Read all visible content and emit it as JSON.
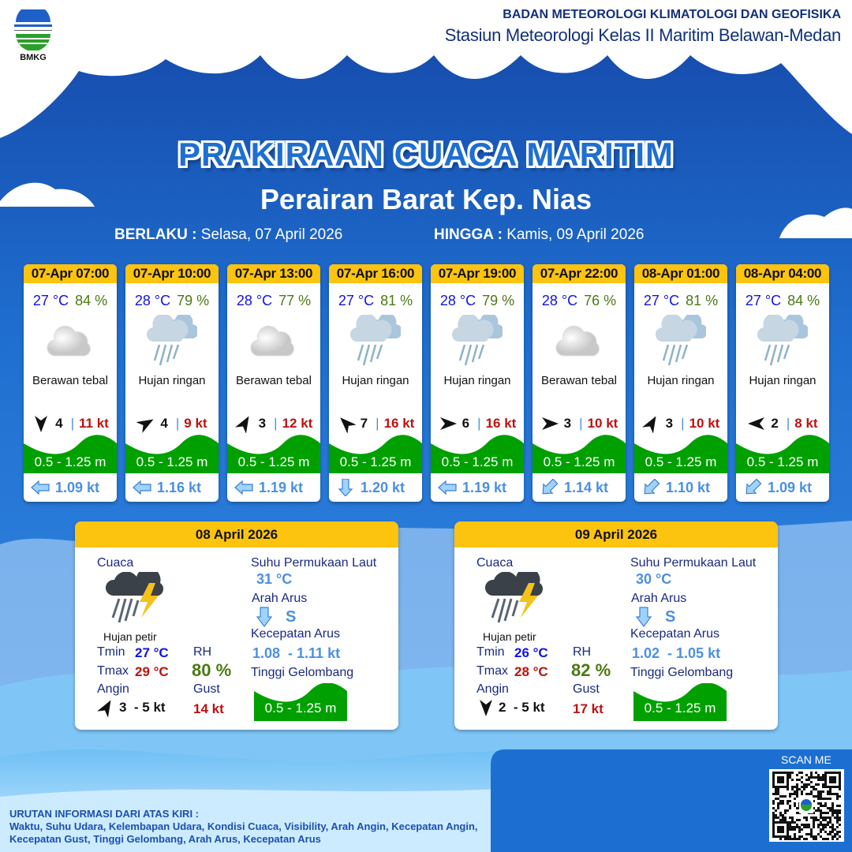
{
  "header": {
    "agency": "BADAN METEOROLOGI KLIMATOLOGI DAN GEOFISIKA",
    "station": "Stasiun Meteorologi Kelas II Maritim Belawan-Medan",
    "logo_text": "BMKG"
  },
  "title": "PRAKIRAAN CUACA MARITIM",
  "subtitle": "Perairan Barat Kep. Nias",
  "validity": {
    "from_label": "BERLAKU :",
    "from": "Selasa, 07 April 2026",
    "to_label": "HINGGA :",
    "to": "Kamis, 09 April 2026"
  },
  "colors": {
    "header_yellow": "#fcc30f",
    "temp": "#1212e6",
    "rh": "#4a7a12",
    "gust": "#c01010",
    "wave": "#00a000",
    "current": "#4a90e2"
  },
  "forecasts": [
    {
      "time": "07-Apr 07:00",
      "temp": "27 °C",
      "rh": "84 %",
      "icon": "cloudy-icon",
      "cond": "Berawan tebal",
      "wind_dir": 180,
      "wind": "4",
      "gust": "11 kt",
      "wave": "0.5 - 1.25 m",
      "cur_dir": "left",
      "cur": "1.09 kt"
    },
    {
      "time": "07-Apr 10:00",
      "temp": "28 °C",
      "rh": "79 %",
      "icon": "rain-icon",
      "cond": "Hujan ringan",
      "wind_dir": 60,
      "wind": "4",
      "gust": "9 kt",
      "wave": "0.5 - 1.25 m",
      "cur_dir": "left",
      "cur": "1.16 kt"
    },
    {
      "time": "07-Apr 13:00",
      "temp": "28 °C",
      "rh": "77 %",
      "icon": "cloudy-icon",
      "cond": "Berawan tebal",
      "wind_dir": 30,
      "wind": "3",
      "gust": "12 kt",
      "wave": "0.5 - 1.25 m",
      "cur_dir": "left",
      "cur": "1.19 kt"
    },
    {
      "time": "07-Apr 16:00",
      "temp": "27 °C",
      "rh": "81 %",
      "icon": "rain-icon",
      "cond": "Hujan ringan",
      "wind_dir": 315,
      "wind": "7",
      "gust": "16 kt",
      "wave": "0.5 - 1.25 m",
      "cur_dir": "down",
      "cur": "1.20 kt"
    },
    {
      "time": "07-Apr 19:00",
      "temp": "28 °C",
      "rh": "79 %",
      "icon": "rain-icon",
      "cond": "Hujan ringan",
      "wind_dir": 90,
      "wind": "6",
      "gust": "16 kt",
      "wave": "0.5 - 1.25 m",
      "cur_dir": "left",
      "cur": "1.19 kt"
    },
    {
      "time": "07-Apr 22:00",
      "temp": "28 °C",
      "rh": "76 %",
      "icon": "cloudy-icon",
      "cond": "Berawan tebal",
      "wind_dir": 90,
      "wind": "3",
      "gust": "10 kt",
      "wave": "0.5 - 1.25 m",
      "cur_dir": "down-left",
      "cur": "1.14 kt"
    },
    {
      "time": "08-Apr 01:00",
      "temp": "27 °C",
      "rh": "81 %",
      "icon": "rain-icon",
      "cond": "Hujan ringan",
      "wind_dir": 30,
      "wind": "3",
      "gust": "10 kt",
      "wave": "0.5 - 1.25 m",
      "cur_dir": "down-left",
      "cur": "1.10 kt"
    },
    {
      "time": "08-Apr 04:00",
      "temp": "27 °C",
      "rh": "84 %",
      "icon": "rain-icon",
      "cond": "Hujan ringan",
      "wind_dir": 270,
      "wind": "2",
      "gust": "8 kt",
      "wave": "0.5 - 1.25 m",
      "cur_dir": "down-left",
      "cur": "1.09 kt"
    }
  ],
  "labels": {
    "weather": "Cuaca",
    "sst": "Suhu Permukaan Laut",
    "cur_dir": "Arah Arus",
    "cur_speed": "Kecepatan Arus",
    "wave": "Tinggi Gelombang",
    "tmin": "Tmin",
    "tmax": "Tmax",
    "rh": "RH",
    "wind": "Angin",
    "gust": "Gust"
  },
  "days": [
    {
      "date": "08 April 2026",
      "cond": "Hujan petir",
      "tmin": "27 °C",
      "tmax": "29 °C",
      "rh": "80 %",
      "wind_dir": 30,
      "wind": "3  - 5 kt",
      "gust": "14 kt",
      "sst": "31 °C",
      "cur_dir": "S",
      "cur": "1.08  - 1.11 kt",
      "wave": "0.5 - 1.25 m"
    },
    {
      "date": "09 April 2026",
      "cond": "Hujan petir",
      "tmin": "26 °C",
      "tmax": "28 °C",
      "rh": "82 %",
      "wind_dir": 180,
      "wind": "2  - 5 kt",
      "gust": "17 kt",
      "sst": "30 °C",
      "cur_dir": "S",
      "cur": "1.02  - 1.05 kt",
      "wave": "0.5 - 1.25 m"
    }
  ],
  "footer": {
    "heading": "URUTAN INFORMASI DARI ATAS KIRI :",
    "text": "Waktu, Suhu Udara, Kelembapan Udara, Kondisi Cuaca, Visibility, Arah Angin, Kecepatan Angin, Kecepatan Gust, Tinggi Gelombang, Arah Arus, Kecepatan Arus",
    "scan": "SCAN ME"
  }
}
